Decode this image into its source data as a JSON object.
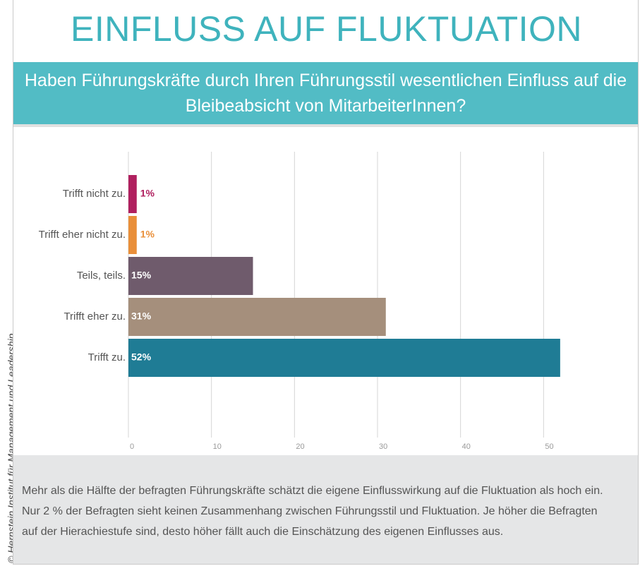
{
  "chart_data": {
    "type": "bar",
    "orientation": "horizontal",
    "title": "EINFLUSS AUF FLUKTUATION",
    "subtitle": "Haben Führungskräfte durch Ihren Führungsstil wesentlichen Einfluss auf die Bleibeabsicht von MitarbeiterInnen?",
    "categories": [
      "Trifft nicht zu.",
      "Trifft eher nicht zu.",
      "Teils, teils.",
      "Trifft eher zu.",
      "Trifft zu."
    ],
    "values": [
      1,
      1,
      15,
      31,
      52
    ],
    "value_labels": [
      "1%",
      "1%",
      "15%",
      "31%",
      "52%"
    ],
    "colors": [
      "#b0205f",
      "#e98f3a",
      "#6f5b6c",
      "#a58f7c",
      "#1f7c95"
    ],
    "xlim": [
      0,
      60
    ],
    "xticks": [
      0,
      10,
      20,
      30,
      40,
      50
    ],
    "grid": true,
    "note": "Mehr als die Hälfte der befragten Führungskräfte schätzt die eigene Einflusswirkung auf die Fluktuation als hoch ein. Nur 2 % der Befragten sieht keinen Zusammenhang zwischen Führungsstil und Fluktuation. Je höher die Befragten auf der Hierachiestufe sind, desto höher fällt auch die Einschätzung des eigenen Einflusses aus.",
    "source": "© Hernstein Institut für Management und Leadership"
  }
}
